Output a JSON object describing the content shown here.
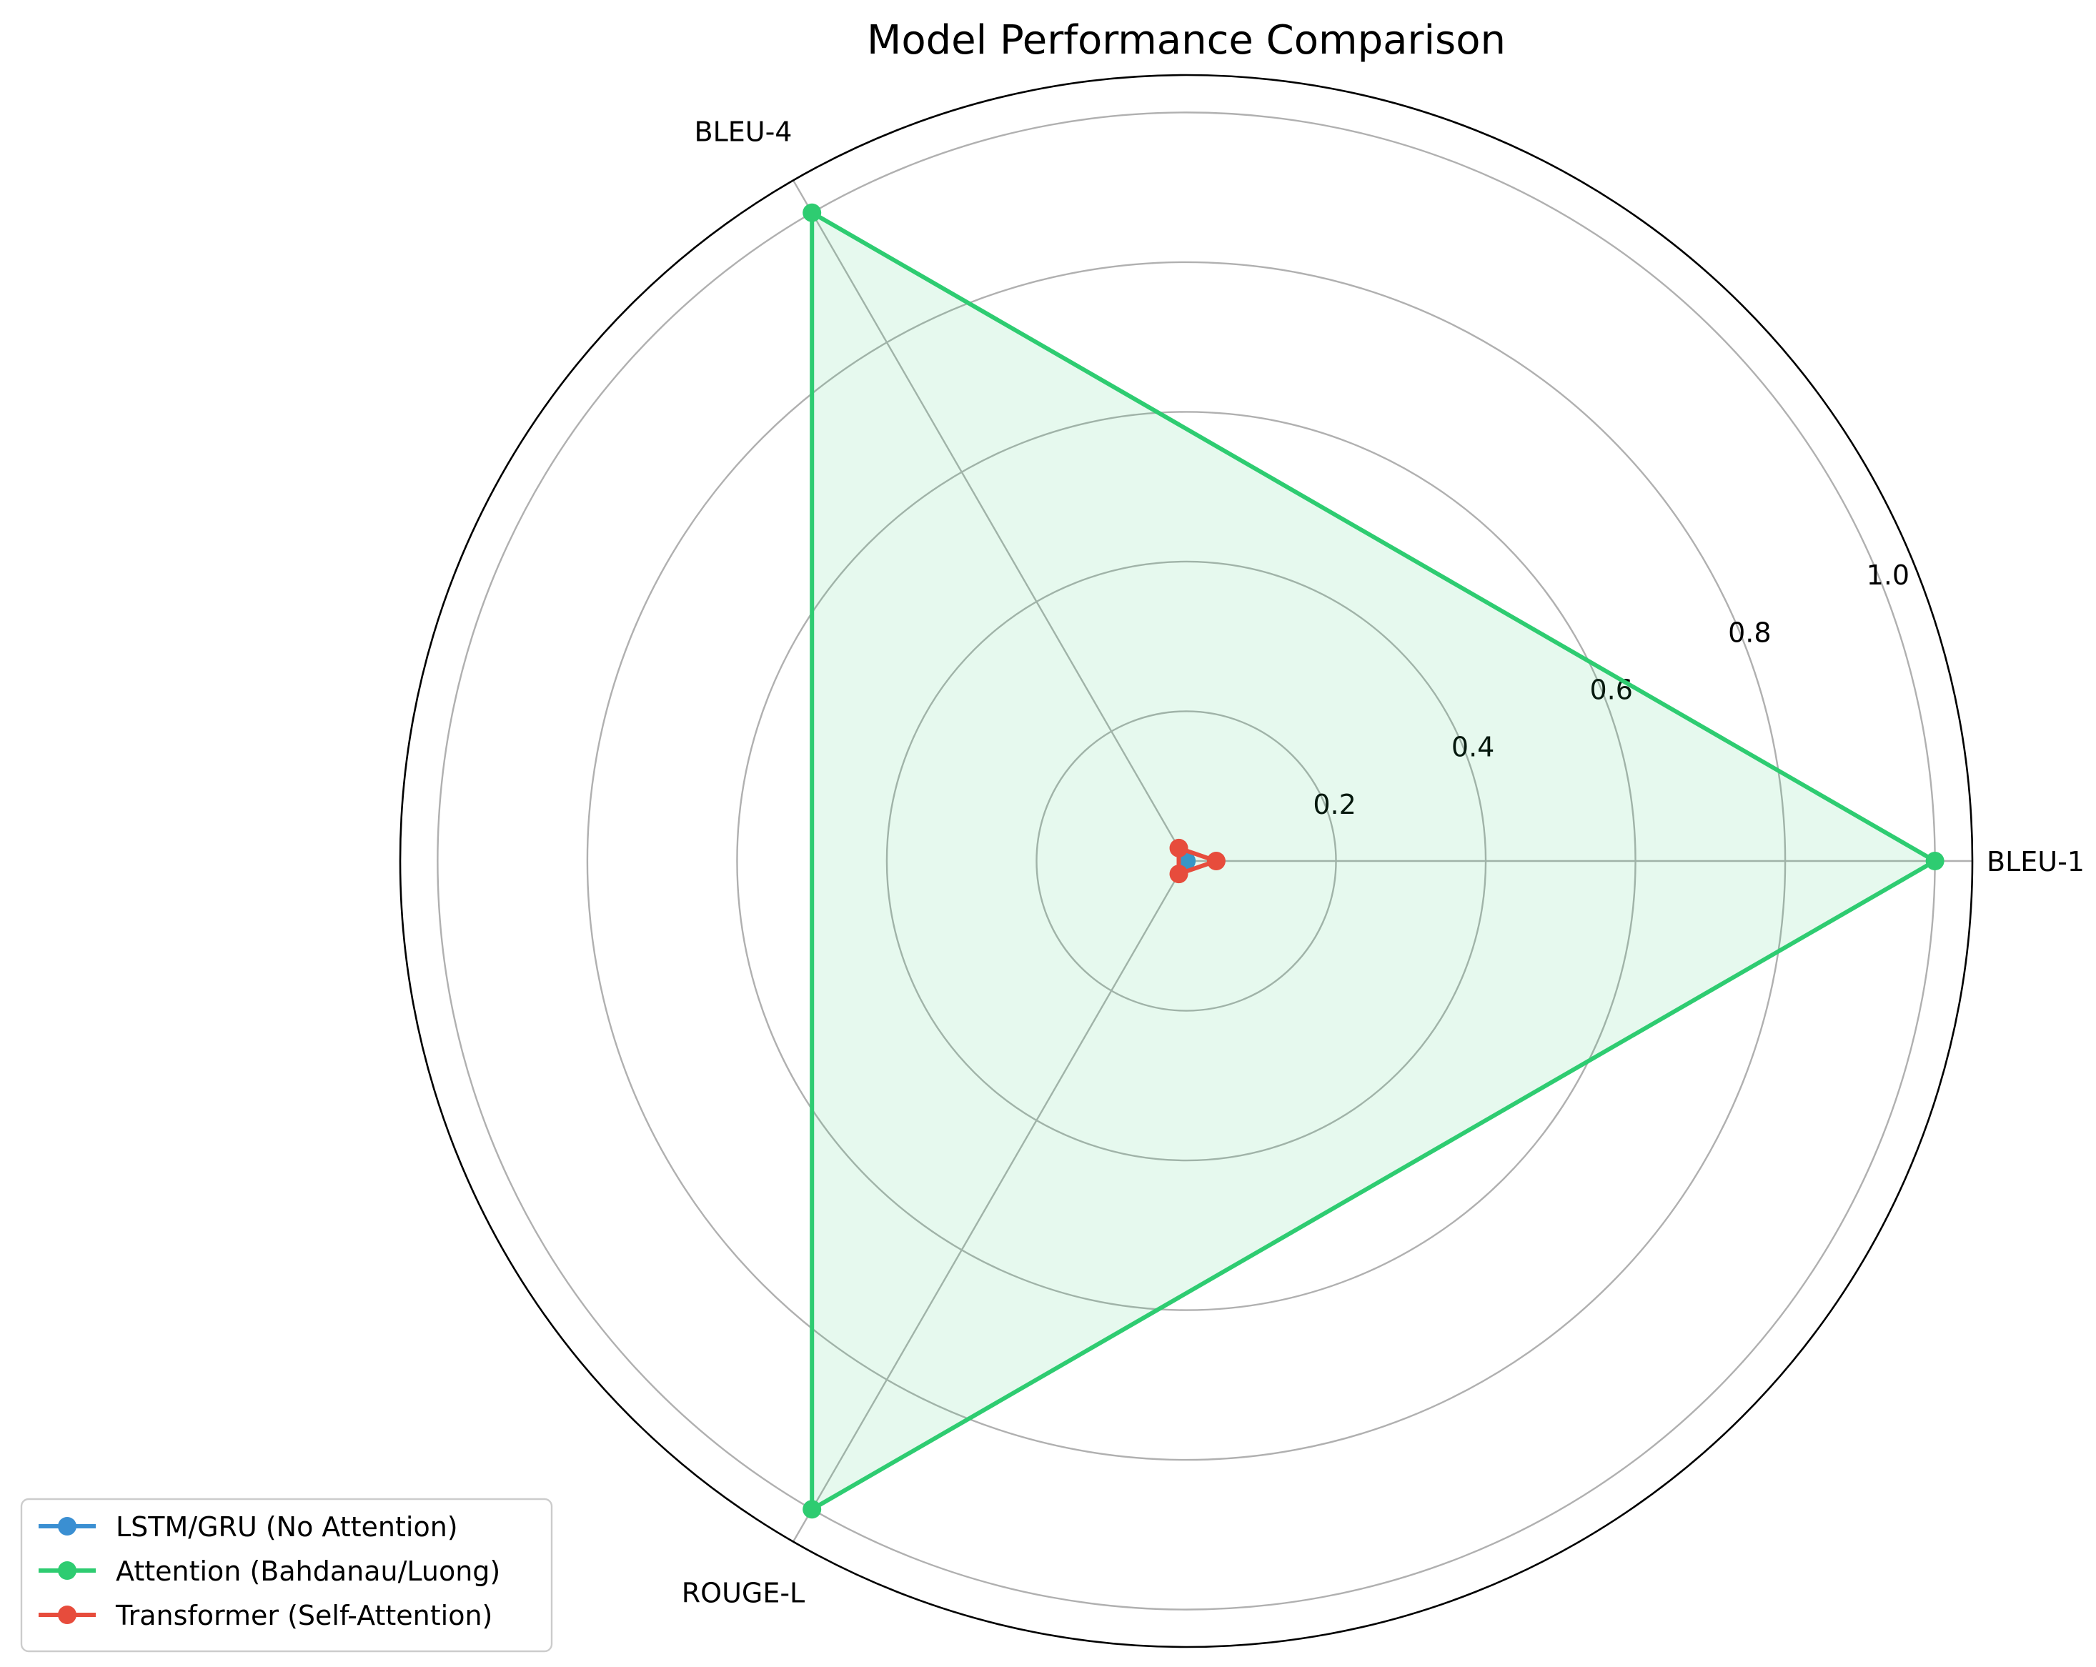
{
  "chart_data": {
    "type": "radar",
    "title": "Model Performance Comparison",
    "categories": [
      "BLEU-1",
      "BLEU-4",
      "ROUGE-L"
    ],
    "rlim": [
      0,
      1.05
    ],
    "rticks": [
      0.2,
      0.4,
      0.6,
      0.8,
      1.0
    ],
    "rtick_labels": [
      "0.2",
      "0.4",
      "0.6",
      "0.8",
      "1.0"
    ],
    "grid": true,
    "legend_position": "lower-left",
    "series": [
      {
        "name": "LSTM/GRU (No Attention)",
        "color": "#3a8fd2",
        "values": [
          0.0,
          0.0,
          0.0
        ],
        "filled": false
      },
      {
        "name": "Attention (Bahdanau/Luong)",
        "color": "#2ecc71",
        "values": [
          1.0,
          1.0,
          1.0
        ],
        "filled": true
      },
      {
        "name": "Transformer (Self-Attention)",
        "color": "#e74c3c",
        "values": [
          0.04,
          0.02,
          0.02
        ],
        "filled": false
      }
    ]
  }
}
